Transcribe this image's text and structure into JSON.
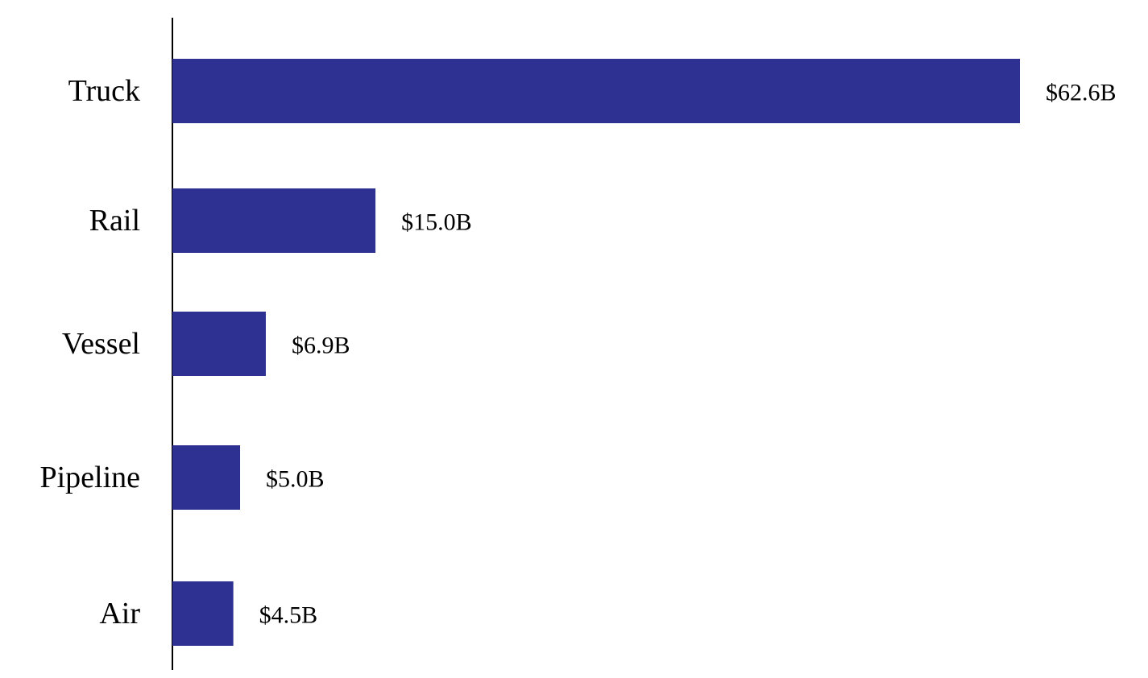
{
  "chart_data": {
    "type": "bar",
    "orientation": "horizontal",
    "categories": [
      "Truck",
      "Rail",
      "Vessel",
      "Pipeline",
      "Air"
    ],
    "values": [
      62.6,
      15.0,
      6.9,
      5.0,
      4.5
    ],
    "value_labels": [
      "$62.6B",
      "$15.0B",
      "$6.9B",
      "$5.0B",
      "$4.5B"
    ],
    "title": "",
    "xlabel": "",
    "ylabel": "",
    "grid": false,
    "legend": "none",
    "bar_color": "#2e3192"
  }
}
